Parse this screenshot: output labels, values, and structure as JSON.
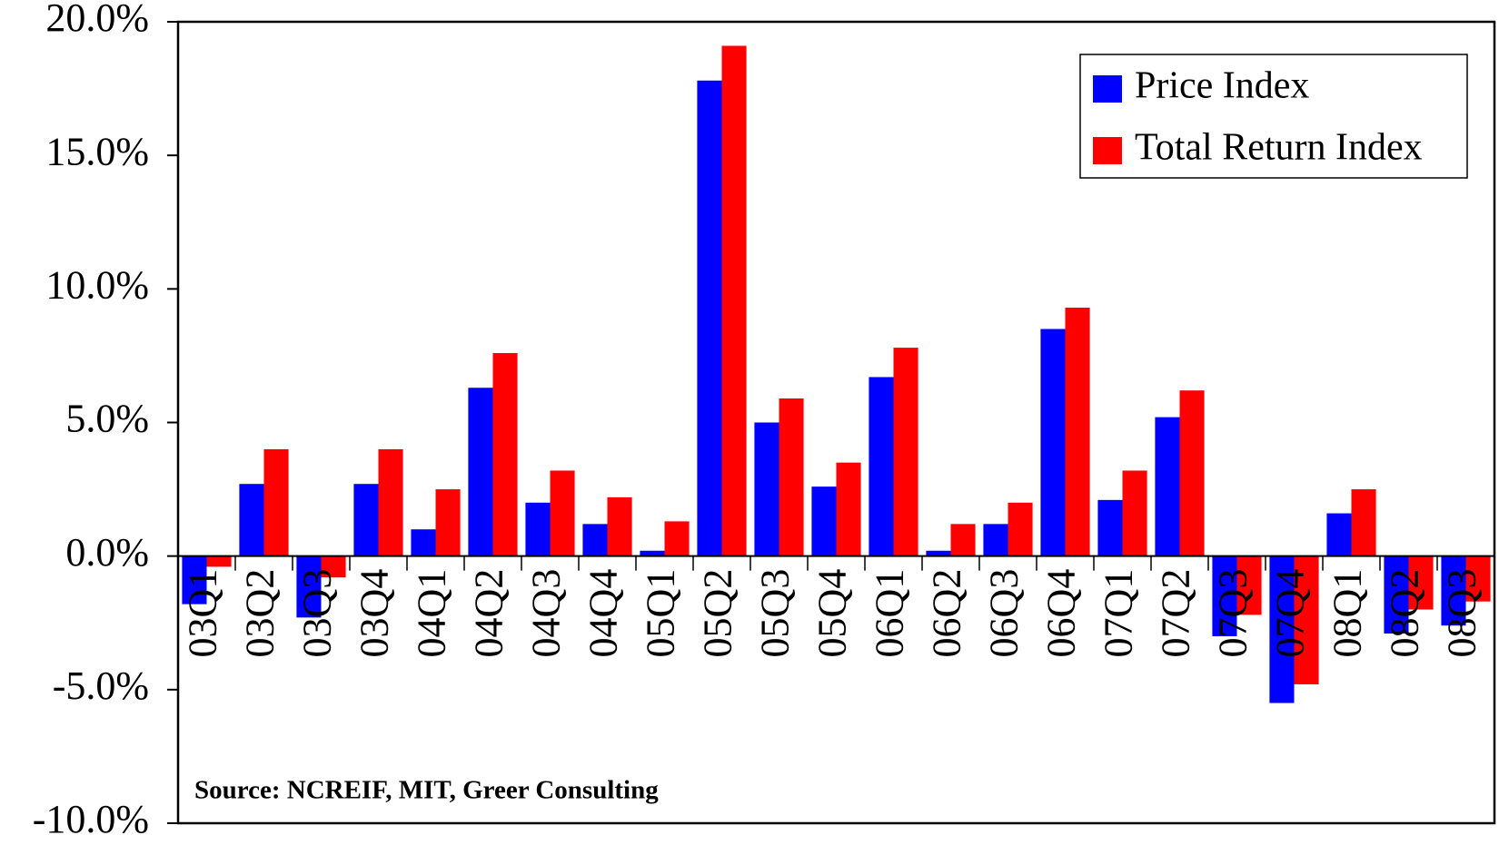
{
  "chart_data": {
    "type": "bar",
    "categories": [
      "03Q1",
      "03Q2",
      "03Q3",
      "03Q4",
      "04Q1",
      "04Q2",
      "04Q3",
      "04Q4",
      "05Q1",
      "05Q2",
      "05Q3",
      "05Q4",
      "06Q1",
      "06Q2",
      "06Q3",
      "06Q4",
      "07Q1",
      "07Q2",
      "07Q3",
      "07Q4",
      "08Q1",
      "08Q2",
      "08Q3"
    ],
    "series": [
      {
        "name": "Price Index",
        "color": "#0000ff",
        "values": [
          -1.8,
          2.7,
          -2.3,
          2.7,
          1.0,
          6.3,
          2.0,
          1.2,
          0.2,
          17.8,
          5.0,
          2.6,
          6.7,
          0.2,
          1.2,
          8.5,
          2.1,
          5.2,
          -3.0,
          -5.5,
          1.6,
          -2.9,
          -2.6
        ]
      },
      {
        "name": "Total Return Index",
        "color": "#ff0000",
        "values": [
          -0.4,
          4.0,
          -0.8,
          4.0,
          2.5,
          7.6,
          3.2,
          2.2,
          1.3,
          19.1,
          5.9,
          3.5,
          7.8,
          1.2,
          2.0,
          9.3,
          3.2,
          6.2,
          -2.2,
          -4.8,
          2.5,
          -2.0,
          -1.7
        ]
      }
    ],
    "ylim": [
      -10,
      20
    ],
    "yticks": [
      {
        "value": -10,
        "label": "-10.0%"
      },
      {
        "value": -5,
        "label": "-5.0%"
      },
      {
        "value": 0,
        "label": "0.0%"
      },
      {
        "value": 5,
        "label": "5.0%"
      },
      {
        "value": 10,
        "label": "10.0%"
      },
      {
        "value": 15,
        "label": "15.0%"
      },
      {
        "value": 20,
        "label": "20.0%"
      }
    ],
    "annotation": "Source: NCREIF, MIT, Greer Consulting",
    "legend": "top-right"
  }
}
